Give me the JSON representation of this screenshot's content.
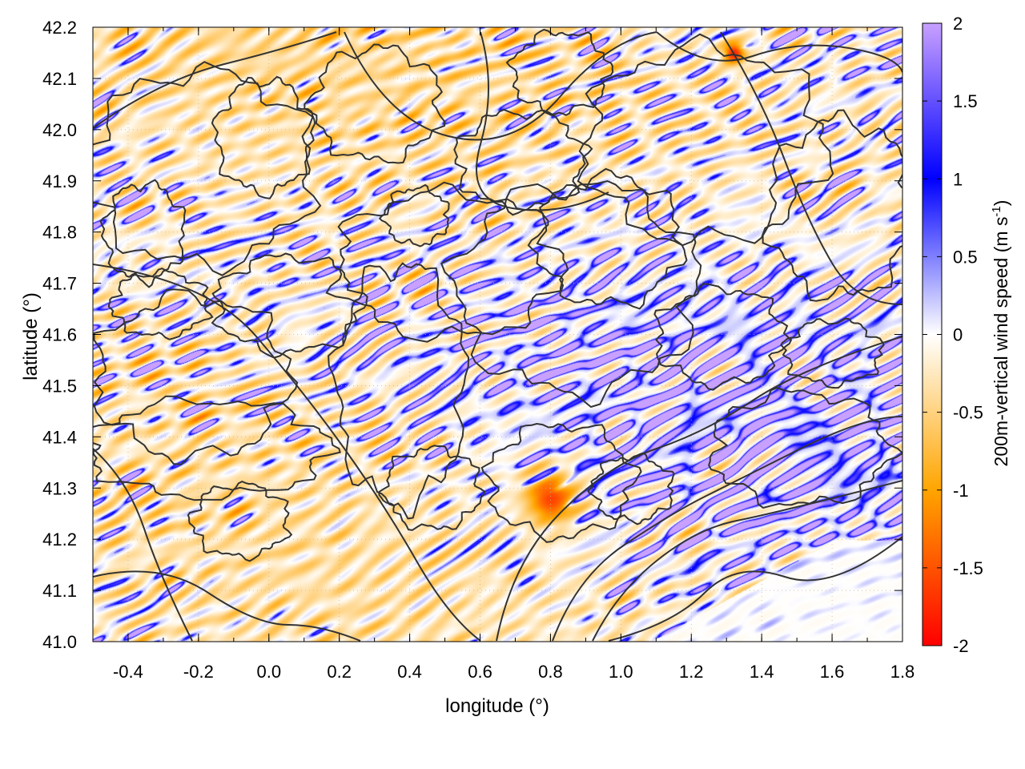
{
  "chart_data": {
    "type": "heatmap",
    "title": "",
    "xlabel": "longitude (°)",
    "ylabel": "latitude (°)",
    "xlim": [
      -0.5,
      1.8
    ],
    "ylim": [
      41.0,
      42.2
    ],
    "x_ticks": [
      "-0.4",
      "-0.2",
      "0.0",
      "0.2",
      "0.4",
      "0.6",
      "0.8",
      "1.0",
      "1.2",
      "1.4",
      "1.6",
      "1.8"
    ],
    "y_ticks": [
      "41.0",
      "41.1",
      "41.2",
      "41.3",
      "41.4",
      "41.5",
      "41.6",
      "41.7",
      "41.8",
      "41.9",
      "42.0",
      "42.1",
      "42.2"
    ],
    "grid": true,
    "colorbar": {
      "label_main": "200m-vertical wind speed (m s",
      "label_sup": "-1",
      "label_close": ")",
      "range": [
        -2,
        2
      ],
      "ticks": [
        "2",
        "1.5",
        "1",
        "0.5",
        "0",
        "-0.5",
        "-1",
        "-1.5",
        "-2"
      ],
      "colors": {
        "min": "#ff0000",
        "neg1": "#ffa500",
        "zero": "#ffffff",
        "pos1": "#0000ff",
        "max": "#c8a0ff"
      }
    },
    "contour_color": "#333333",
    "features": [
      {
        "kind": "wave_band",
        "lon_from": -0.45,
        "lat_from": 42.1,
        "lon_to": 0.65,
        "lat_to": 41.05,
        "sign": "positive"
      },
      {
        "kind": "updraft_max",
        "lon": 1.32,
        "lat": 42.15,
        "value": -1.8
      },
      {
        "kind": "downdraft_cluster",
        "lon": 0.8,
        "lat": 41.28,
        "value": -1.6
      },
      {
        "kind": "smooth_region",
        "lon": 1.5,
        "lat": 41.05,
        "value": 0.0
      }
    ]
  }
}
